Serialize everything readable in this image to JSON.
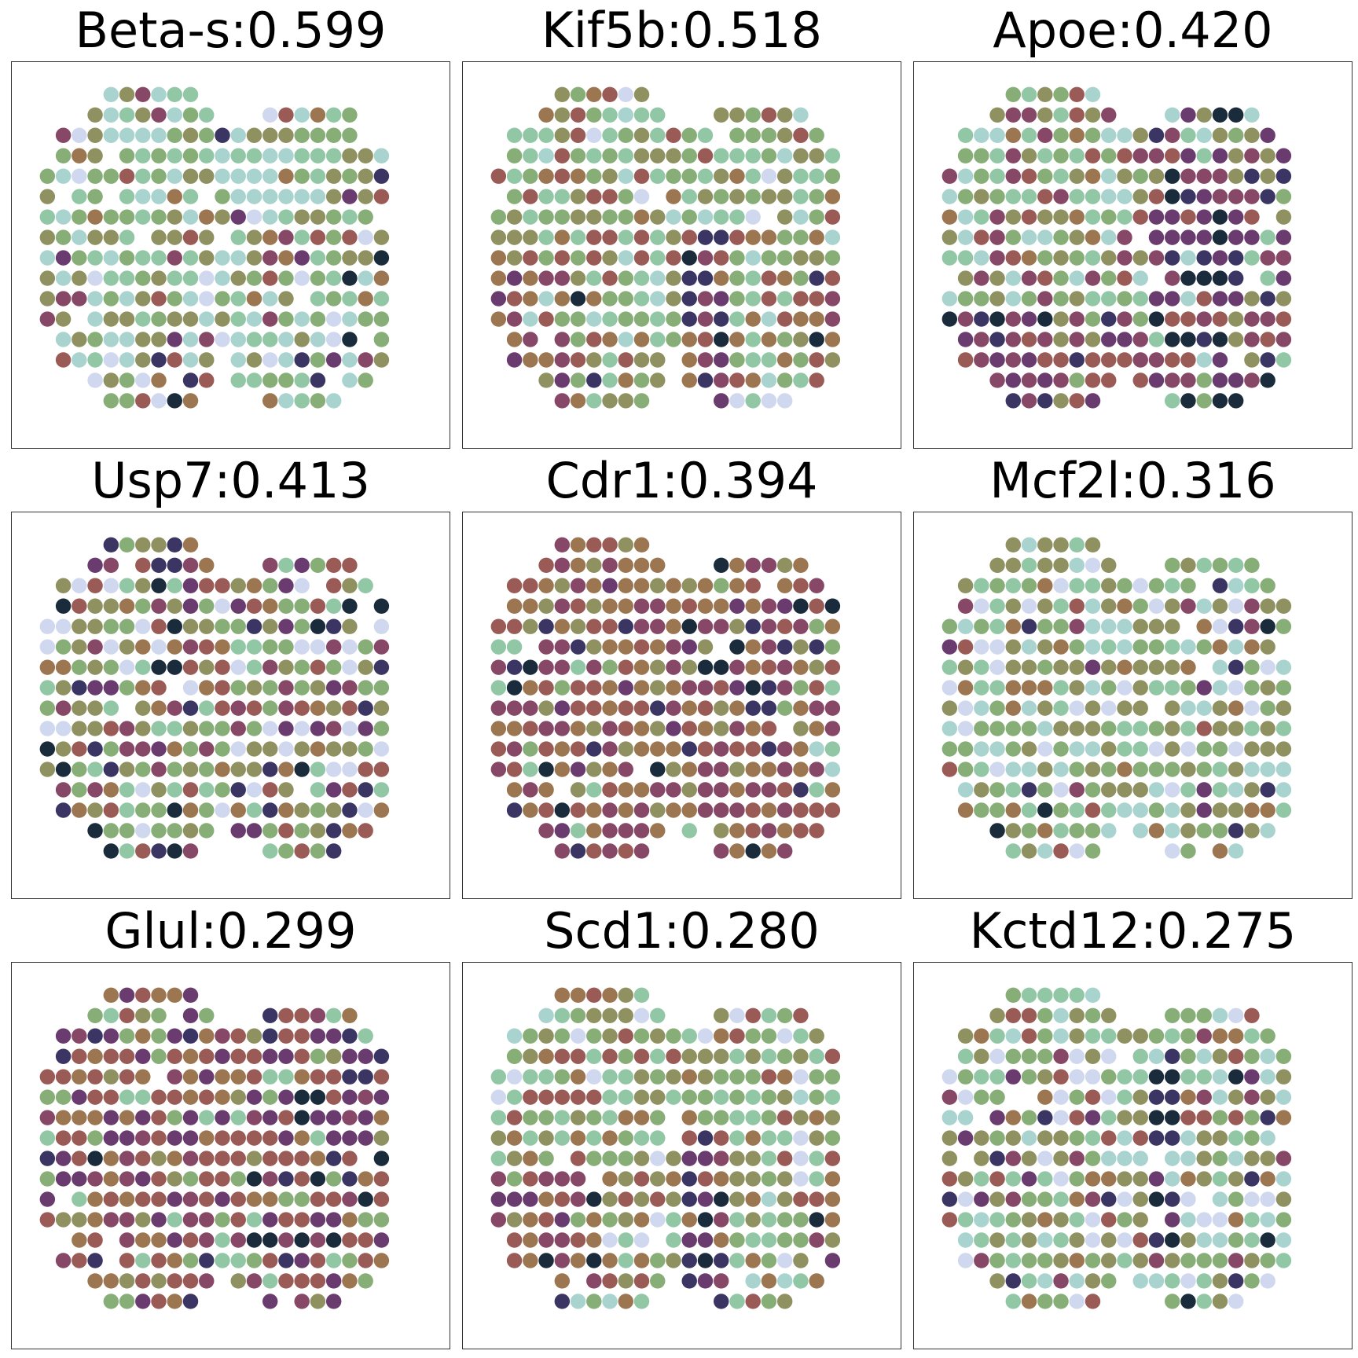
{
  "chart_data": [
    {
      "type": "scatter",
      "title": "Beta-s:0.599",
      "gene": "Beta-s",
      "score": 0.599,
      "seed": 11,
      "mode": "green"
    },
    {
      "type": "scatter",
      "title": "Kif5b:0.518",
      "gene": "Kif5b",
      "score": 0.518,
      "seed": 23,
      "mode": "olive-right-dark"
    },
    {
      "type": "scatter",
      "title": "Apoe:0.420",
      "gene": "Apoe",
      "score": 0.42,
      "seed": 37,
      "mode": "purple-right"
    },
    {
      "type": "scatter",
      "title": "Usp7:0.413",
      "gene": "Usp7",
      "score": 0.413,
      "seed": 41,
      "mode": "mixed-light"
    },
    {
      "type": "scatter",
      "title": "Cdr1:0.394",
      "gene": "Cdr1",
      "score": 0.394,
      "seed": 53,
      "mode": "red"
    },
    {
      "type": "scatter",
      "title": "Mcf2l:0.316",
      "gene": "Mcf2l",
      "score": 0.316,
      "seed": 67,
      "mode": "green-light"
    },
    {
      "type": "scatter",
      "title": "Glul:0.299",
      "gene": "Glul",
      "score": 0.299,
      "seed": 71,
      "mode": "purple"
    },
    {
      "type": "scatter",
      "title": "Scd1:0.280",
      "gene": "Scd1",
      "score": 0.28,
      "seed": 83,
      "mode": "olive-right-dark"
    },
    {
      "type": "scatter",
      "title": "Kctd12:0.275",
      "gene": "Kctd12",
      "score": 0.275,
      "seed": 97,
      "mode": "green-midline"
    }
  ],
  "palette": {
    "dark_navy": "#1a2b3c",
    "indigo": "#3b3564",
    "purple": "#6a3b6e",
    "plum": "#874766",
    "rust": "#9a5a55",
    "brown": "#9b7650",
    "olive": "#8f9160",
    "sage": "#88ae78",
    "mint": "#92c7a6",
    "aqua": "#a8d3cf",
    "lavender": "#cfd8ee"
  }
}
